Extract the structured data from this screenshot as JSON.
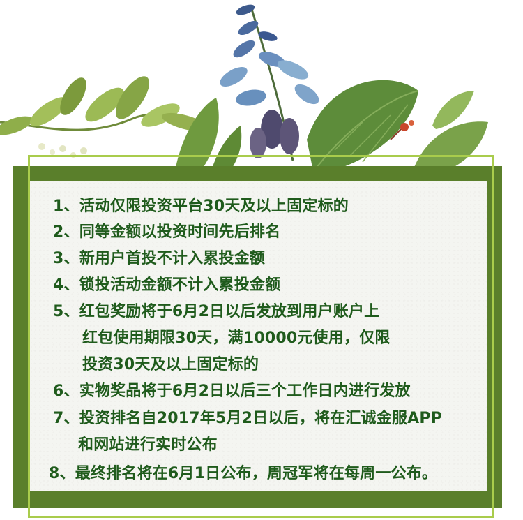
{
  "rules": [
    {
      "text": "1、活动仅限投资平台30天及以上固定标的"
    },
    {
      "text": "2、同等金额以投资时间先后排名"
    },
    {
      "text": "3、新用户首投不计入累投金额"
    },
    {
      "text": "4、锁投活动金额不计入累投金额"
    },
    {
      "text": "5、红包奖励将于6月2日以后发放到用户账户上"
    },
    {
      "text": "红包使用期限30天，满10000元使用，仅限"
    },
    {
      "text": "投资30天及以上固定标的"
    },
    {
      "text": "6、实物奖品将于6月2日以后三个工作日内进行发放"
    },
    {
      "text": "7、投资排名自2017年5月2日以后，将在汇诚金服APP"
    },
    {
      "text": "和网站进行实时公布"
    },
    {
      "text": "8、最终排名将在6月1日公布，周冠军将在每周一公布。"
    }
  ],
  "colors": {
    "panel_frame": "#5a7f2b",
    "accent_line": "#a9cc4c",
    "text": "#1f5b1c",
    "panel_bg": "#f4f5f1"
  }
}
